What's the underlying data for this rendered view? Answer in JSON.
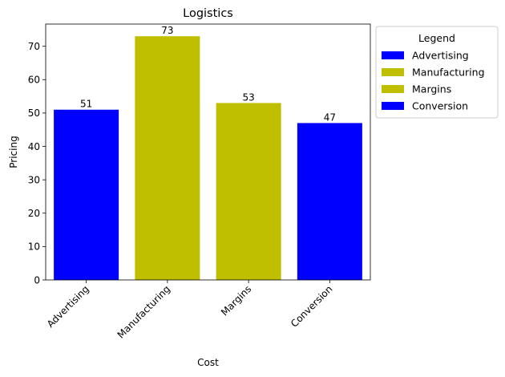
{
  "chart_data": {
    "type": "bar",
    "title": "Logistics",
    "xlabel": "Cost",
    "ylabel": "Pricing",
    "categories": [
      "Advertising",
      "Manufacturing",
      "Margins",
      "Conversion"
    ],
    "values": [
      51,
      73,
      53,
      47
    ],
    "bar_colors": [
      "#0000ff",
      "#bfbf00",
      "#bfbf00",
      "#0000ff"
    ],
    "ylim": [
      0,
      76.65
    ],
    "yticks": [
      0,
      10,
      20,
      30,
      40,
      50,
      60,
      70
    ],
    "grid": false,
    "legend": {
      "title": "Legend",
      "placement": "outside-top-right",
      "entries": [
        {
          "label": "Advertising",
          "color": "#0000ff"
        },
        {
          "label": "Manufacturing",
          "color": "#bfbf00"
        },
        {
          "label": "Margins",
          "color": "#bfbf00"
        },
        {
          "label": "Conversion",
          "color": "#0000ff"
        }
      ]
    }
  }
}
